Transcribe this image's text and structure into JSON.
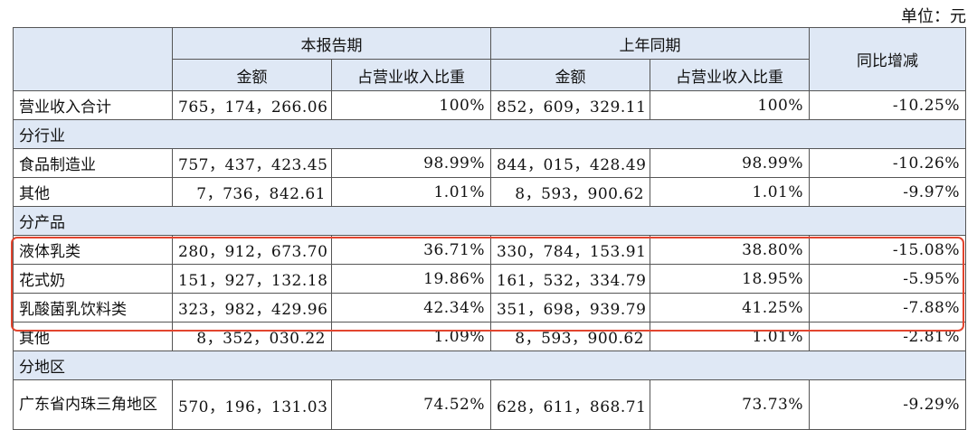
{
  "unit_label": "单位：元",
  "header": {
    "current_period": "本报告期",
    "prior_period": "上年同期",
    "yoy": "同比增减",
    "amount": "金额",
    "share": "占营业收入比重"
  },
  "total": {
    "label": "营业收入合计",
    "cur_amount": "765，174，266.06",
    "cur_share": "100%",
    "prior_amount": "852，609，329.11",
    "prior_share": "100%",
    "yoy": "-10.25%"
  },
  "sections": [
    {
      "title": "分行业",
      "rows": [
        {
          "label": "食品制造业",
          "cur_amount": "757，437，423.45",
          "cur_share": "98.99%",
          "prior_amount": "844，015，428.49",
          "prior_share": "98.99%",
          "yoy": "-10.26%"
        },
        {
          "label": "其他",
          "cur_amount": "7，736，842.61",
          "cur_share": "1.01%",
          "prior_amount": "8，593，900.62",
          "prior_share": "1.01%",
          "yoy": "-9.97%"
        }
      ]
    },
    {
      "title": "分产品",
      "rows": [
        {
          "label": "液体乳类",
          "cur_amount": "280，912，673.70",
          "cur_share": "36.71%",
          "prior_amount": "330，784，153.91",
          "prior_share": "38.80%",
          "yoy": "-15.08%"
        },
        {
          "label": "花式奶",
          "cur_amount": "151，927，132.18",
          "cur_share": "19.86%",
          "prior_amount": "161，532，334.79",
          "prior_share": "18.95%",
          "yoy": "-5.95%"
        },
        {
          "label": "乳酸菌乳饮料类",
          "cur_amount": "323，982，429.96",
          "cur_share": "42.34%",
          "prior_amount": "351，698，939.79",
          "prior_share": "41.25%",
          "yoy": "-7.88%"
        },
        {
          "label": "其他",
          "cur_amount": "8，352，030.22",
          "cur_share": "1.09%",
          "prior_amount": "8，593，900.62",
          "prior_share": "1.01%",
          "yoy": "-2.81%"
        }
      ]
    },
    {
      "title": "分地区",
      "rows": [
        {
          "label": "广东省内珠三角地区",
          "cur_amount": "570，196，131.03",
          "cur_share": "74.52%",
          "prior_amount": "628，611，868.71",
          "prior_share": "73.73%",
          "yoy": "-9.29%"
        }
      ]
    }
  ],
  "colors": {
    "header_bg": "#dfe8f5",
    "highlight_border": "#e2452f"
  }
}
